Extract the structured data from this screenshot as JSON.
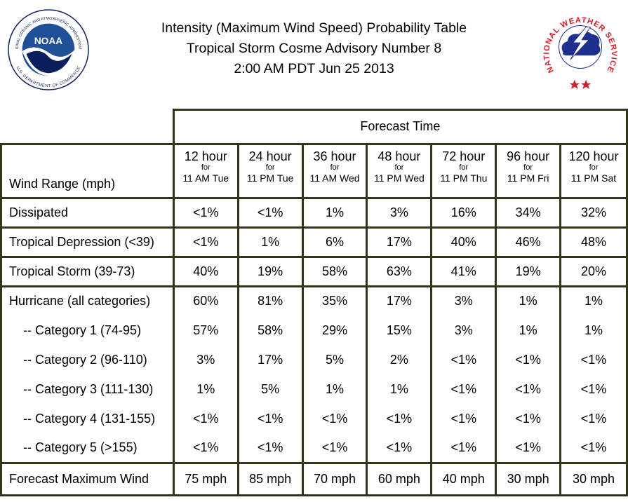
{
  "header": {
    "line1": "Intensity (Maximum Wind Speed) Probability Table",
    "line2": "Tropical Storm Cosme Advisory Number 8",
    "line3": "2:00 AM PDT Jun 25 2013"
  },
  "logos": {
    "noaa": {
      "center_text": "NOAA",
      "ring_top": "NATIONAL OCEANIC AND ATMOSPHERIC ADMINISTRATION",
      "ring_bottom": "U.S. DEPARTMENT OF COMMERCE"
    },
    "nws": {
      "ring_text": "NATIONAL WEATHER SERVICE"
    }
  },
  "table": {
    "forecast_time_label": "Forecast Time",
    "wind_range_label": "Wind Range (mph)",
    "for_label": "for",
    "columns": [
      {
        "hours": "12 hour",
        "time": "11 AM Tue"
      },
      {
        "hours": "24 hour",
        "time": "11 PM Tue"
      },
      {
        "hours": "36 hour",
        "time": "11 AM Wed"
      },
      {
        "hours": "48 hour",
        "time": "11 PM Wed"
      },
      {
        "hours": "72 hour",
        "time": "11 PM Thu"
      },
      {
        "hours": "96 hour",
        "time": "11 PM Fri"
      },
      {
        "hours": "120 hour",
        "time": "11 PM Sat"
      }
    ],
    "rows": [
      {
        "label": "Dissipated",
        "values": [
          "<1%",
          "<1%",
          "1%",
          "3%",
          "16%",
          "34%",
          "32%"
        ]
      },
      {
        "label": "Tropical Depression (<39)",
        "values": [
          "<1%",
          "1%",
          "6%",
          "17%",
          "40%",
          "46%",
          "48%"
        ]
      },
      {
        "label": "Tropical Storm (39-73)",
        "values": [
          "40%",
          "19%",
          "58%",
          "63%",
          "41%",
          "19%",
          "20%"
        ]
      },
      {
        "label": "Hurricane (all categories)",
        "values": [
          "60%",
          "81%",
          "35%",
          "17%",
          "3%",
          "1%",
          "1%"
        ]
      },
      {
        "label": "-- Category 1 (74-95)",
        "values": [
          "57%",
          "58%",
          "29%",
          "15%",
          "3%",
          "1%",
          "1%"
        ]
      },
      {
        "label": "-- Category 2 (96-110)",
        "values": [
          "3%",
          "17%",
          "5%",
          "2%",
          "<1%",
          "<1%",
          "<1%"
        ]
      },
      {
        "label": "-- Category 3 (111-130)",
        "values": [
          "1%",
          "5%",
          "1%",
          "1%",
          "<1%",
          "<1%",
          "<1%"
        ]
      },
      {
        "label": "-- Category 4 (131-155)",
        "values": [
          "<1%",
          "<1%",
          "<1%",
          "<1%",
          "<1%",
          "<1%",
          "<1%"
        ]
      },
      {
        "label": "-- Category 5 (>155)",
        "values": [
          "<1%",
          "<1%",
          "<1%",
          "<1%",
          "<1%",
          "<1%",
          "<1%"
        ]
      }
    ],
    "max_wind": {
      "label": "Forecast Maximum Wind",
      "values": [
        "75 mph",
        "85 mph",
        "70 mph",
        "60 mph",
        "40 mph",
        "30 mph",
        "30 mph"
      ]
    }
  },
  "colors": {
    "border": "#33331a",
    "noaa_blue": "#1f4f96",
    "noaa_dark": "#0b1f5c",
    "nws_red": "#d11f2a",
    "nws_blue": "#1d2f8f"
  }
}
